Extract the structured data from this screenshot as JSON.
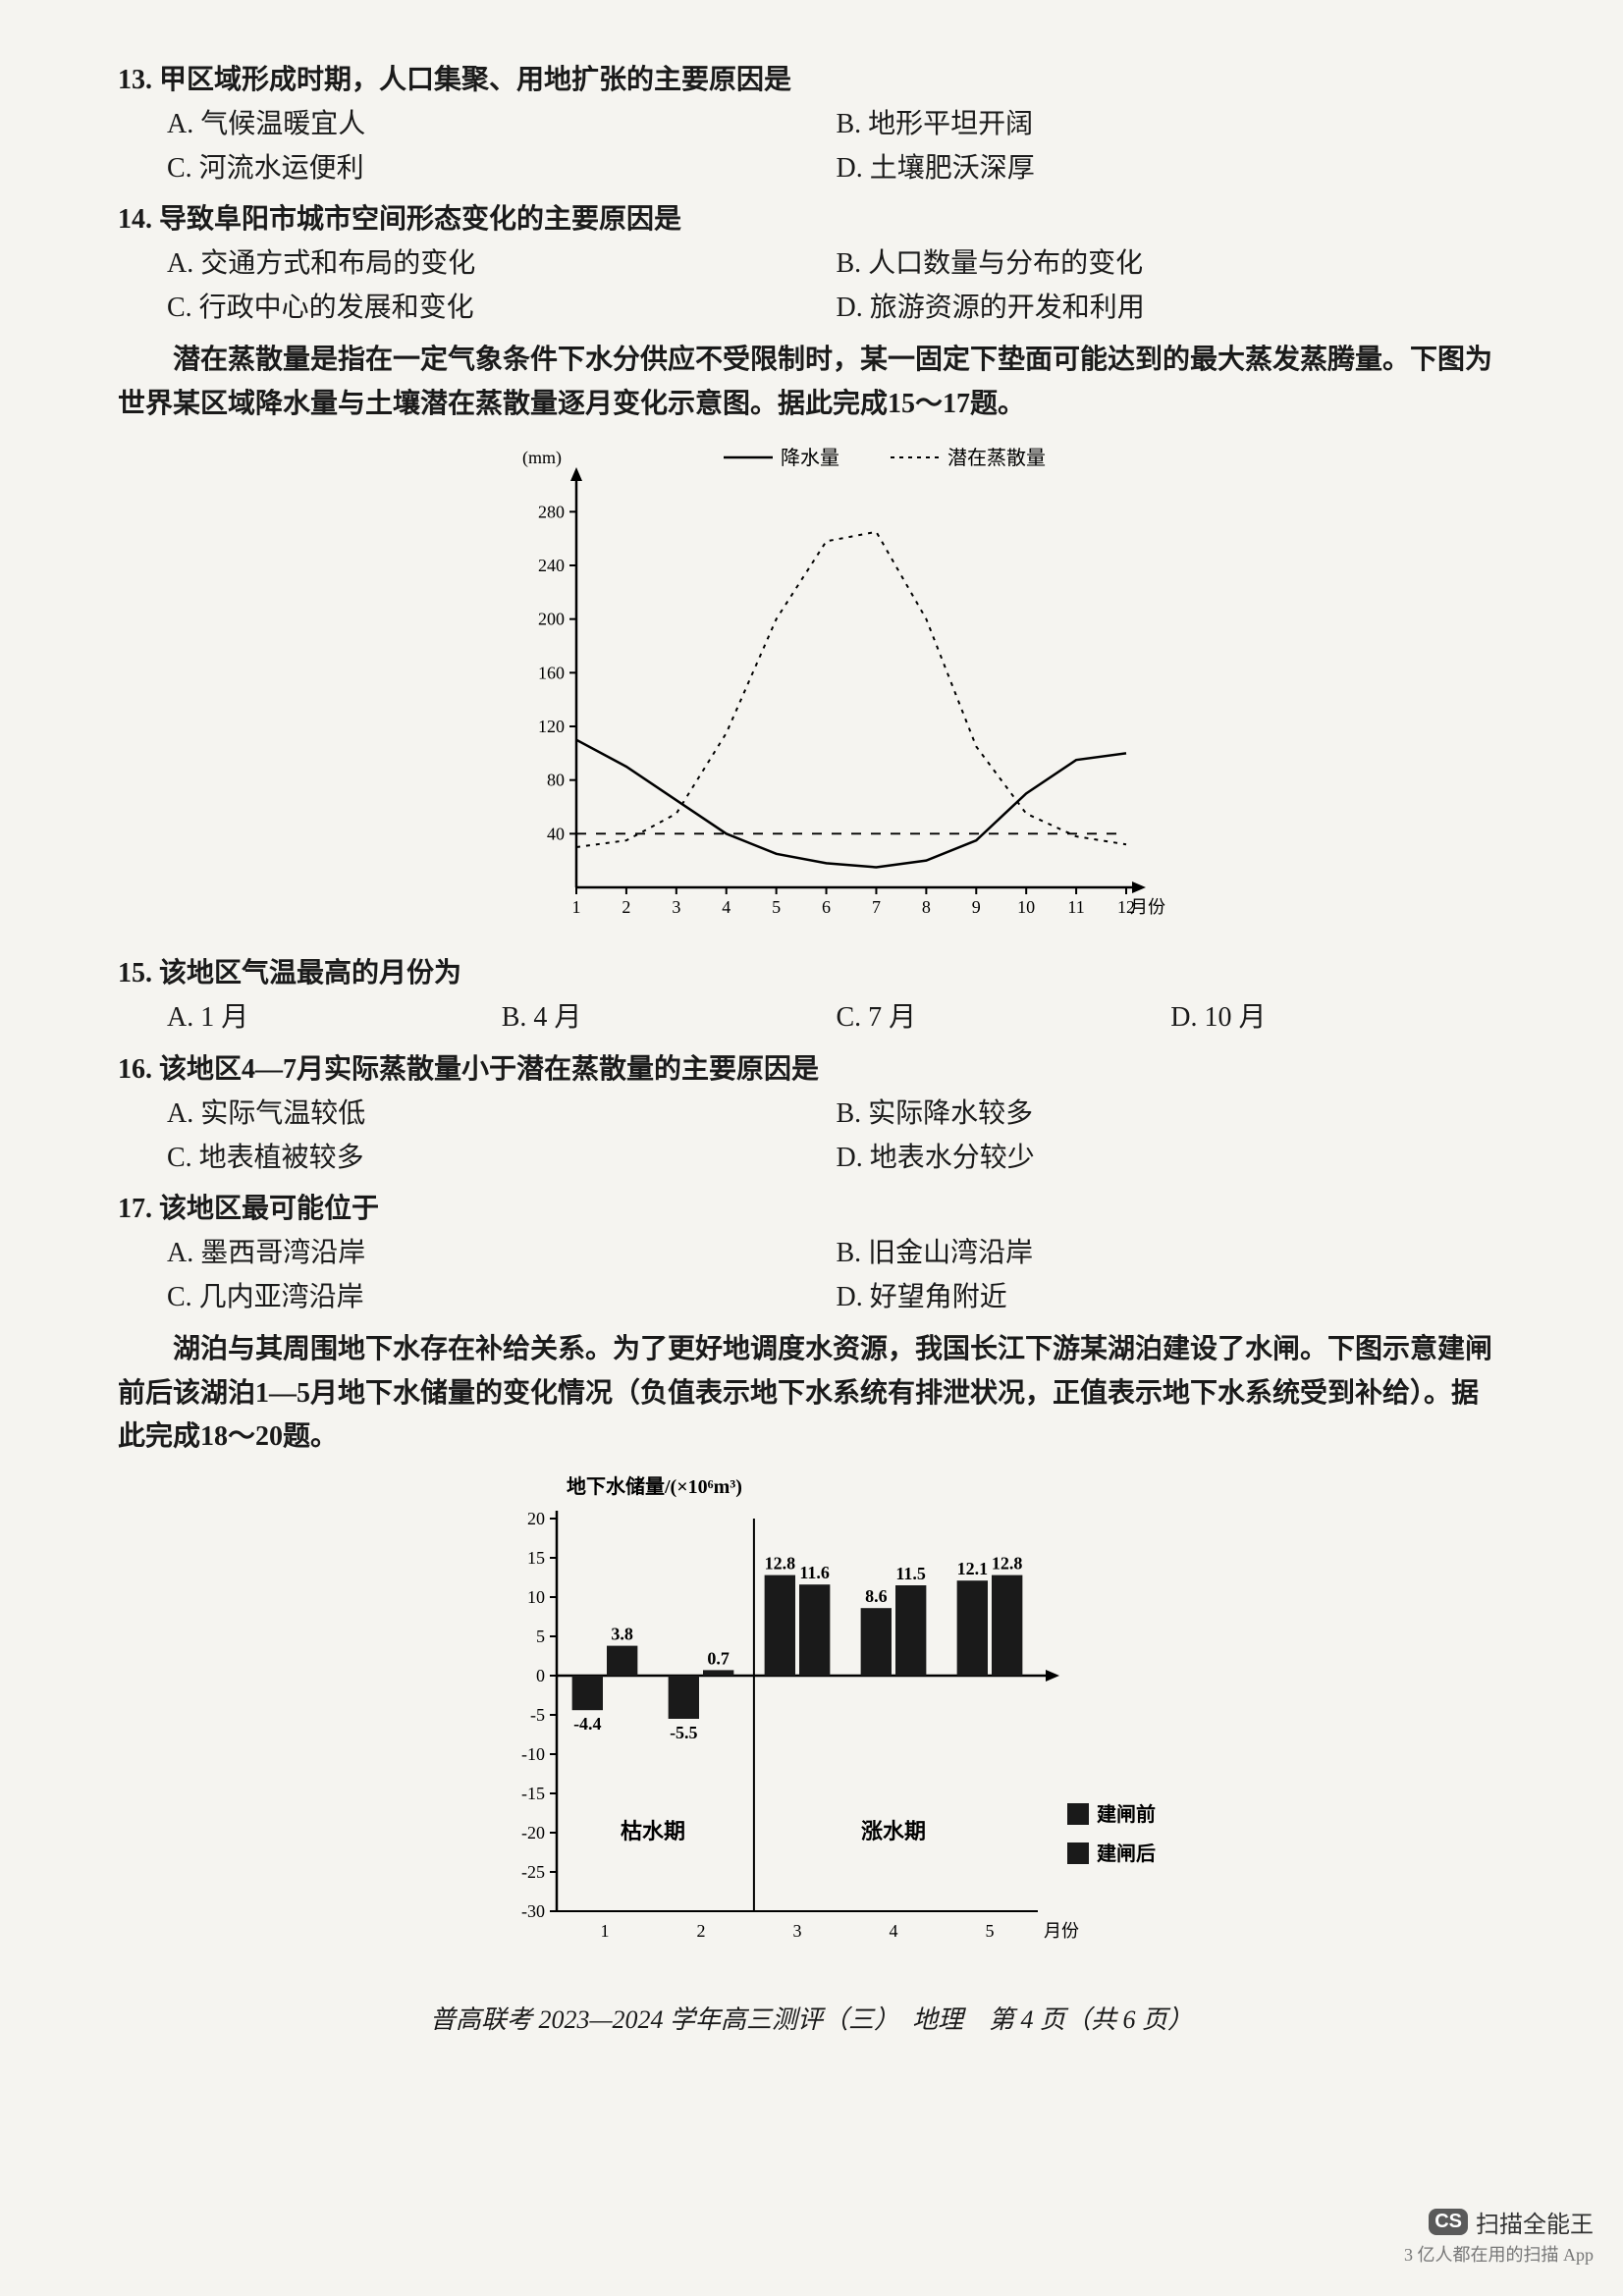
{
  "q13": {
    "stem": "13. 甲区域形成时期，人口集聚、用地扩张的主要原因是",
    "A": "A. 气候温暖宜人",
    "B": "B. 地形平坦开阔",
    "C": "C. 河流水运便利",
    "D": "D. 土壤肥沃深厚"
  },
  "q14": {
    "stem": "14. 导致阜阳市城市空间形态变化的主要原因是",
    "A": "A. 交通方式和布局的变化",
    "B": "B. 人口数量与分布的变化",
    "C": "C. 行政中心的发展和变化",
    "D": "D. 旅游资源的开发和利用"
  },
  "passage1": "潜在蒸散量是指在一定气象条件下水分供应不受限制时，某一固定下垫面可能达到的最大蒸发蒸腾量。下图为世界某区域降水量与土壤潜在蒸散量逐月变化示意图。据此完成15～17题。",
  "chart1": {
    "type": "line",
    "y_unit": "(mm)",
    "legend_solid": "降水量",
    "legend_dashed": "潜在蒸散量",
    "x_label_suffix": "月份",
    "x_ticks": [
      1,
      2,
      3,
      4,
      5,
      6,
      7,
      8,
      9,
      10,
      11,
      12
    ],
    "y_ticks": [
      40,
      80,
      120,
      160,
      200,
      240,
      280
    ],
    "ylim": [
      0,
      300
    ],
    "dash_ref": 40,
    "precipitation": [
      110,
      90,
      65,
      40,
      25,
      18,
      15,
      20,
      35,
      70,
      95,
      100
    ],
    "evapotranspiration": [
      30,
      35,
      55,
      115,
      200,
      258,
      265,
      200,
      105,
      55,
      38,
      32
    ],
    "colors": {
      "axis": "#000000",
      "solid_line": "#000000",
      "dashed_line": "#000000",
      "ref_dash": "#000000",
      "bg": "#f5f4f0"
    },
    "line_width_solid": 2.5,
    "line_width_dashed": 2,
    "font_size_axis": 18,
    "font_size_legend": 20
  },
  "q15": {
    "stem": "15. 该地区气温最高的月份为",
    "A": "A. 1 月",
    "B": "B. 4 月",
    "C": "C. 7 月",
    "D": "D. 10 月"
  },
  "q16": {
    "stem": "16. 该地区4—7月实际蒸散量小于潜在蒸散量的主要原因是",
    "A": "A. 实际气温较低",
    "B": "B. 实际降水较多",
    "C": "C. 地表植被较多",
    "D": "D. 地表水分较少"
  },
  "q17": {
    "stem": "17. 该地区最可能位于",
    "A": "A. 墨西哥湾沿岸",
    "B": "B. 旧金山湾沿岸",
    "C": "C. 几内亚湾沿岸",
    "D": "D. 好望角附近"
  },
  "passage2": "湖泊与其周围地下水存在补给关系。为了更好地调度水资源，我国长江下游某湖泊建设了水闸。下图示意建闸前后该湖泊1—5月地下水储量的变化情况（负值表示地下水系统有排泄状况，正值表示地下水系统受到补给）。据此完成18～20题。",
  "chart2": {
    "type": "bar",
    "title": "地下水储量/(×10⁶m³)",
    "x_label_suffix": "月份",
    "x_ticks": [
      1,
      2,
      3,
      4,
      5
    ],
    "y_ticks": [
      -30,
      -25,
      -20,
      -15,
      -10,
      -5,
      0,
      5,
      10,
      15,
      20
    ],
    "ylim": [
      -30,
      20
    ],
    "before": [
      -4.4,
      -5.5,
      12.8,
      8.6,
      12.1
    ],
    "after": [
      3.8,
      0.7,
      11.6,
      11.5,
      12.8
    ],
    "before_labels": [
      "-4.4",
      "-5.5",
      "12.8",
      "8.6",
      "12.1"
    ],
    "after_labels": [
      "3.8",
      "0.7",
      "11.6",
      "11.5",
      "12.8"
    ],
    "period_dry": "枯水期",
    "period_wet": "涨水期",
    "legend_before": "建闸前",
    "legend_after": "建闸后",
    "colors": {
      "axis": "#000000",
      "bar_before": "#1a1a1a",
      "bar_after": "#1a1a1a",
      "bg": "#f5f4f0"
    },
    "bar_width": 0.32,
    "font_size_axis": 18,
    "font_size_title": 20,
    "font_size_value": 18
  },
  "footer": "普高联考 2023—2024 学年高三测评（三）　地理　第 4 页（共 6 页）",
  "watermark": {
    "badge": "CS",
    "name": "扫描全能王",
    "sub": "3 亿人都在用的扫描 App"
  }
}
